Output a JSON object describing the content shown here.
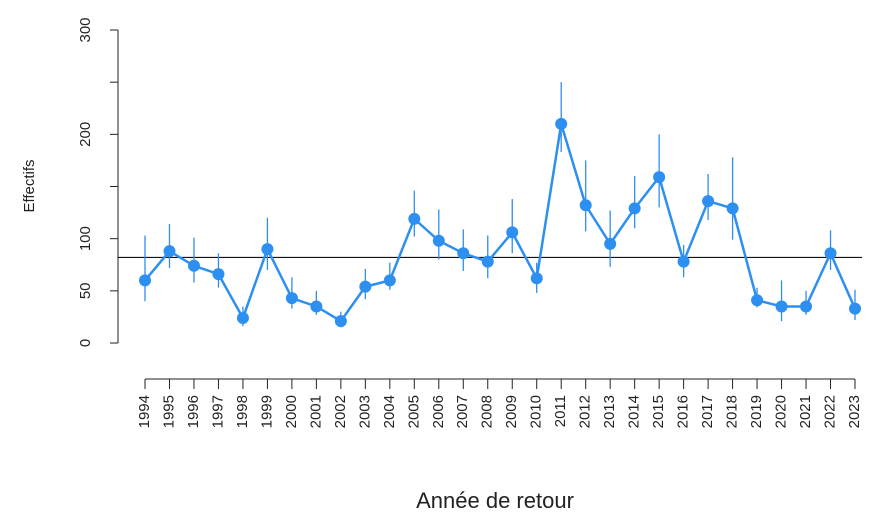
{
  "chart_data": {
    "type": "line",
    "x_label": "Année de retour",
    "y_label": "Effectifs",
    "categories": [
      "1994",
      "1995",
      "1996",
      "1997",
      "1998",
      "1999",
      "2000",
      "2001",
      "2002",
      "2003",
      "2004",
      "2005",
      "2006",
      "2007",
      "2008",
      "2009",
      "2010",
      "2011",
      "2012",
      "2013",
      "2014",
      "2015",
      "2016",
      "2017",
      "2018",
      "2019",
      "2020",
      "2021",
      "2022",
      "2023"
    ],
    "series": [
      {
        "color": "#2d8ff0",
        "values": [
          60,
          88,
          74,
          66,
          24,
          90,
          43,
          35,
          21,
          54,
          60,
          119,
          98,
          86,
          78,
          106,
          62,
          210,
          132,
          95,
          129,
          159,
          78,
          136,
          129,
          41,
          35,
          35,
          86,
          33
        ],
        "lower": [
          40,
          72,
          58,
          53,
          16,
          70,
          33,
          27,
          15,
          42,
          51,
          102,
          80,
          69,
          62,
          86,
          48,
          183,
          107,
          73,
          110,
          130,
          63,
          118,
          99,
          34,
          21,
          27,
          70,
          22
        ],
        "upper": [
          103,
          114,
          101,
          86,
          35,
          120,
          63,
          50,
          30,
          71,
          77,
          146,
          128,
          109,
          103,
          138,
          77,
          250,
          175,
          127,
          160,
          200,
          94,
          162,
          178,
          53,
          60,
          50,
          108,
          51
        ]
      }
    ],
    "reference_line": 82,
    "ylim": [
      0,
      300
    ],
    "yticks": [
      0,
      50,
      100,
      {
        "value": 150,
        "label": null
      },
      200,
      {
        "value": 250,
        "label": null
      },
      300
    ]
  }
}
